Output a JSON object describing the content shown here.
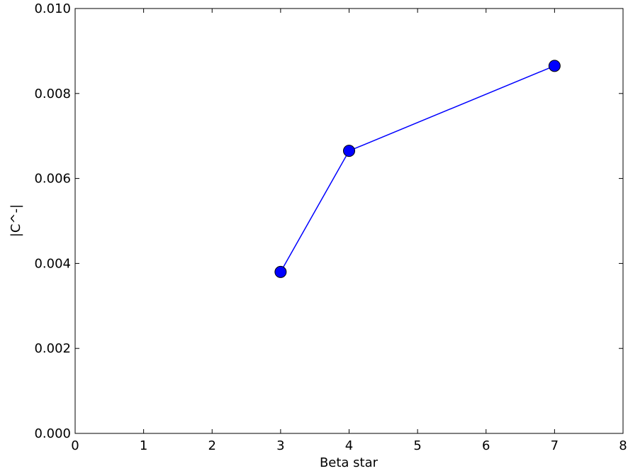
{
  "chart_data": {
    "type": "line",
    "x": [
      3,
      4,
      7
    ],
    "series": [
      {
        "color": "#0000ff",
        "values": [
          0.0038,
          0.00665,
          0.00865
        ]
      }
    ],
    "xlabel": "Beta star",
    "ylabel": "|C^-|",
    "xlim": [
      0,
      8
    ],
    "xticks": [
      0,
      1,
      2,
      3,
      4,
      5,
      6,
      7,
      8
    ],
    "ylim": [
      0,
      0.01
    ],
    "yticks": [
      {
        "value": 0,
        "label": "0.000"
      },
      {
        "value": 0.002,
        "label": "0.002"
      },
      {
        "value": 0.004,
        "label": "0.004"
      },
      {
        "value": 0.006,
        "label": "0.006"
      },
      {
        "value": 0.008,
        "label": "0.008"
      },
      {
        "value": 0.01,
        "label": "0.010"
      }
    ]
  }
}
